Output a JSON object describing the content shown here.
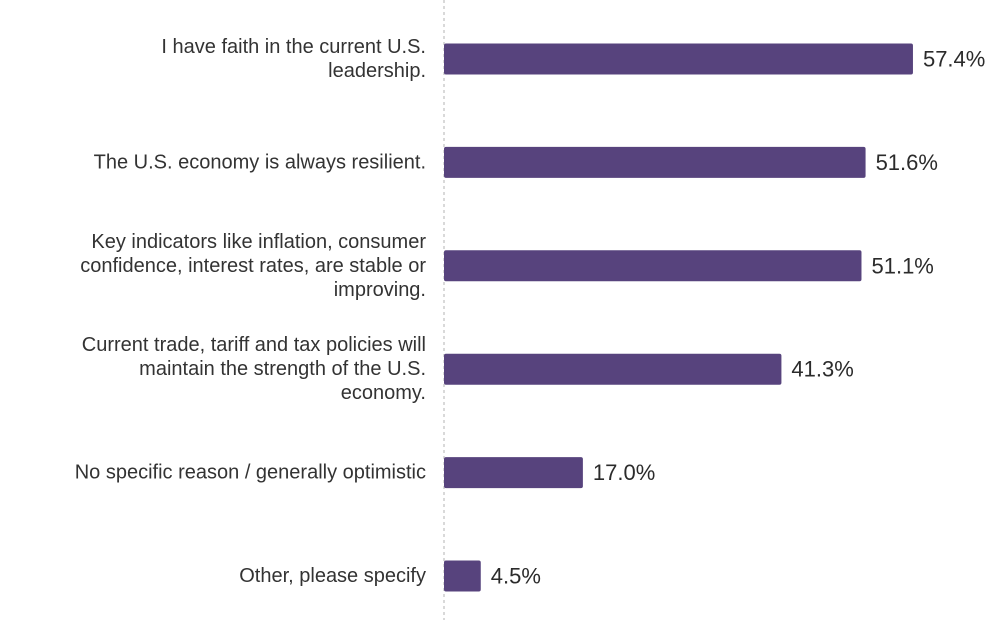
{
  "chart_data": {
    "type": "bar",
    "orientation": "horizontal",
    "categories": [
      "I have faith in the current U.S. leadership.",
      "The U.S. economy is always resilient.",
      "Key indicators like inflation, consumer confidence, interest rates, are stable or improving.",
      "Current trade, tariff and tax policies will maintain the strength of the U.S. economy.",
      "No specific reason / generally optimistic",
      "Other, please specify"
    ],
    "category_lines": [
      [
        "I have faith in the current U.S.",
        "leadership."
      ],
      [
        "The U.S. economy is always resilient."
      ],
      [
        "Key indicators like inflation, consumer",
        "confidence, interest rates, are stable or",
        "improving."
      ],
      [
        "Current trade, tariff and tax policies will",
        "maintain the strength of the U.S.",
        "economy."
      ],
      [
        "No specific reason / generally optimistic"
      ],
      [
        "Other, please specify"
      ]
    ],
    "values": [
      57.4,
      51.6,
      51.1,
      41.3,
      17.0,
      4.5
    ],
    "value_labels": [
      "57.4%",
      "51.6%",
      "51.1%",
      "41.3%",
      "17.0%",
      "4.5%"
    ],
    "unit": "%",
    "title": "",
    "xlabel": "",
    "ylabel": "",
    "bar_color": "#57437d",
    "axis_line_color": "#d9d9d9",
    "grid": false,
    "legend": "none"
  }
}
